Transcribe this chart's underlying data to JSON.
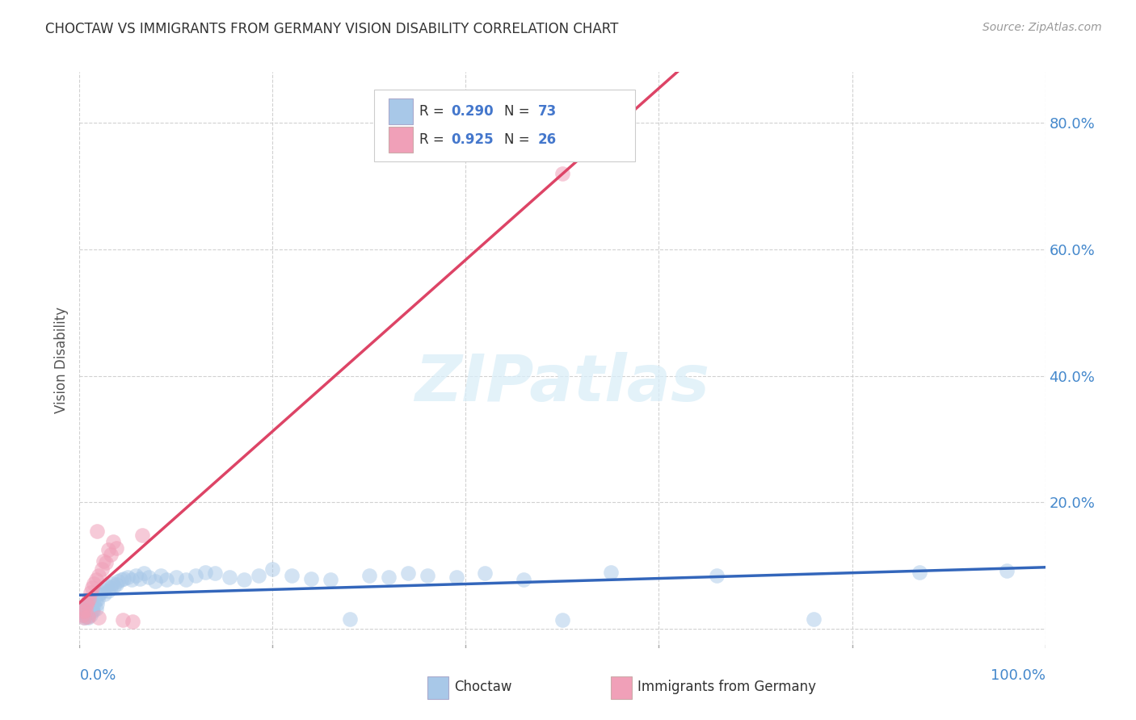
{
  "title": "CHOCTAW VS IMMIGRANTS FROM GERMANY VISION DISABILITY CORRELATION CHART",
  "source": "Source: ZipAtlas.com",
  "ylabel": "Vision Disability",
  "ytick_values": [
    0.0,
    0.2,
    0.4,
    0.6,
    0.8
  ],
  "ytick_labels": [
    "",
    "20.0%",
    "40.0%",
    "60.0%",
    "80.0%"
  ],
  "xtick_values": [
    0.0,
    0.2,
    0.4,
    0.6,
    0.8,
    1.0
  ],
  "xlim": [
    0.0,
    1.0
  ],
  "ylim": [
    -0.03,
    0.88
  ],
  "choctaw_R": "0.290",
  "choctaw_N": "73",
  "germany_R": "0.925",
  "germany_N": "26",
  "choctaw_scatter_color": "#a8c8e8",
  "choctaw_line_color": "#3366bb",
  "germany_scatter_color": "#f0a0b8",
  "germany_line_color": "#dd4466",
  "text_blue_color": "#4477cc",
  "watermark_text": "ZIPatlas",
  "watermark_color": "#daeef8",
  "background_color": "#ffffff",
  "grid_color": "#cccccc",
  "title_color": "#333333",
  "axis_tick_color": "#4488cc",
  "legend_label_1": "Choctaw",
  "legend_label_2": "Immigrants from Germany",
  "choctaw_x": [
    0.003,
    0.004,
    0.004,
    0.005,
    0.005,
    0.006,
    0.006,
    0.007,
    0.007,
    0.008,
    0.008,
    0.009,
    0.009,
    0.01,
    0.01,
    0.011,
    0.011,
    0.012,
    0.013,
    0.014,
    0.015,
    0.016,
    0.017,
    0.018,
    0.019,
    0.02,
    0.022,
    0.024,
    0.026,
    0.028,
    0.03,
    0.032,
    0.034,
    0.036,
    0.038,
    0.04,
    0.043,
    0.046,
    0.05,
    0.054,
    0.058,
    0.062,
    0.067,
    0.072,
    0.078,
    0.084,
    0.09,
    0.1,
    0.11,
    0.12,
    0.13,
    0.14,
    0.155,
    0.17,
    0.185,
    0.2,
    0.22,
    0.24,
    0.26,
    0.28,
    0.3,
    0.32,
    0.34,
    0.36,
    0.39,
    0.42,
    0.46,
    0.5,
    0.55,
    0.66,
    0.76,
    0.87,
    0.96
  ],
  "choctaw_y": [
    0.028,
    0.022,
    0.032,
    0.026,
    0.018,
    0.03,
    0.024,
    0.02,
    0.036,
    0.025,
    0.038,
    0.018,
    0.032,
    0.028,
    0.04,
    0.022,
    0.035,
    0.042,
    0.03,
    0.028,
    0.038,
    0.045,
    0.032,
    0.04,
    0.048,
    0.055,
    0.058,
    0.062,
    0.055,
    0.068,
    0.06,
    0.065,
    0.072,
    0.068,
    0.07,
    0.075,
    0.078,
    0.08,
    0.082,
    0.078,
    0.085,
    0.08,
    0.088,
    0.082,
    0.075,
    0.085,
    0.078,
    0.082,
    0.078,
    0.085,
    0.09,
    0.088,
    0.082,
    0.078,
    0.085,
    0.095,
    0.085,
    0.08,
    0.078,
    0.016,
    0.085,
    0.082,
    0.088,
    0.085,
    0.082,
    0.088,
    0.078,
    0.014,
    0.09,
    0.085,
    0.016,
    0.09,
    0.092
  ],
  "germany_x": [
    0.003,
    0.004,
    0.005,
    0.006,
    0.007,
    0.008,
    0.009,
    0.01,
    0.011,
    0.013,
    0.015,
    0.017,
    0.02,
    0.023,
    0.027,
    0.032,
    0.038,
    0.045,
    0.055,
    0.065,
    0.025,
    0.03,
    0.02,
    0.018,
    0.035,
    0.5
  ],
  "germany_y": [
    0.022,
    0.028,
    0.018,
    0.03,
    0.038,
    0.042,
    0.02,
    0.048,
    0.058,
    0.065,
    0.072,
    0.078,
    0.085,
    0.095,
    0.105,
    0.118,
    0.128,
    0.015,
    0.012,
    0.148,
    0.108,
    0.125,
    0.018,
    0.155,
    0.138,
    0.72
  ]
}
